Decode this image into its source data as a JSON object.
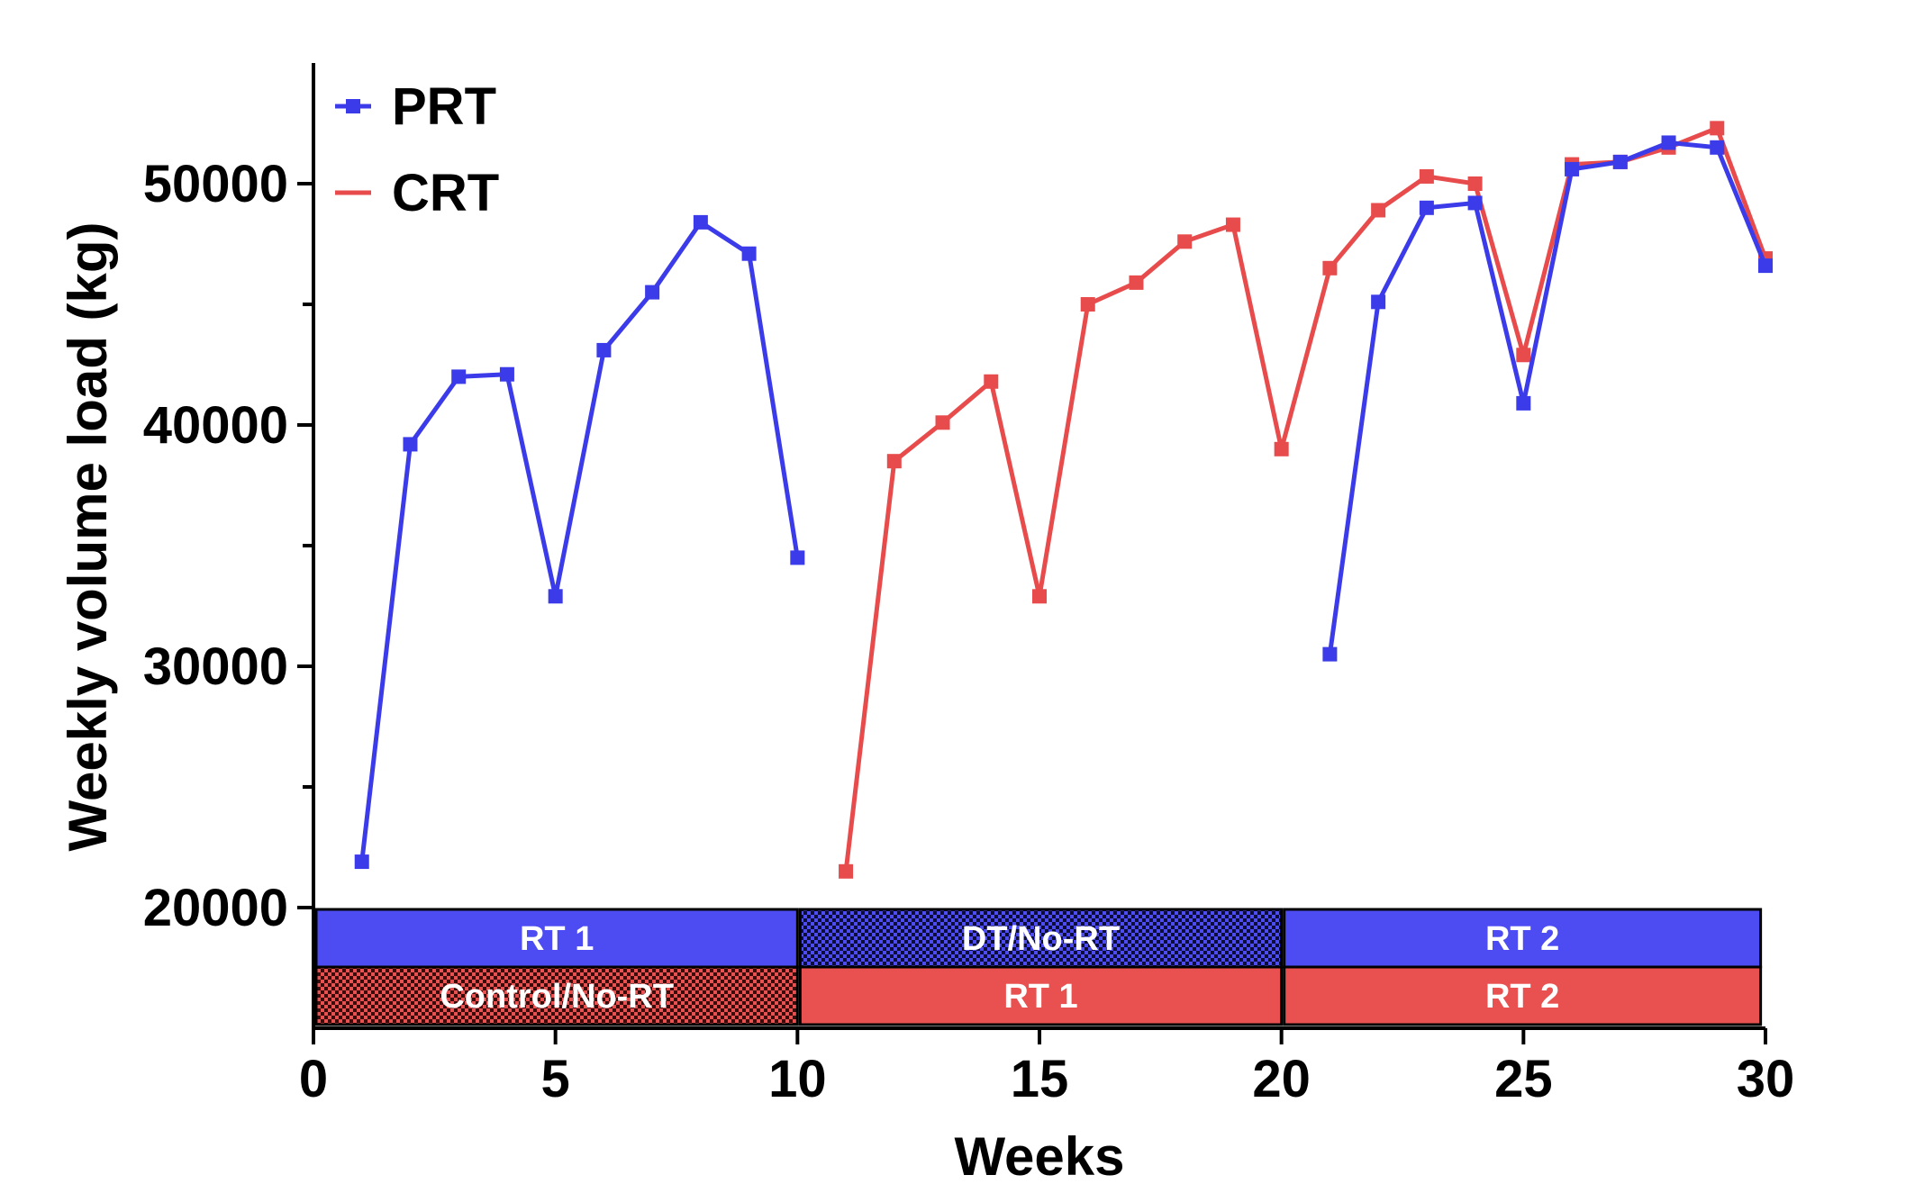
{
  "chart_data": {
    "type": "line",
    "title": "",
    "xlabel": "Weeks",
    "ylabel": "Weekly volume load (kg)",
    "xlim": [
      0,
      30
    ],
    "ylim": [
      15000,
      55000
    ],
    "x_ticks": [
      0,
      5,
      10,
      15,
      20,
      25,
      30
    ],
    "y_ticks": [
      20000,
      30000,
      40000,
      50000
    ],
    "y_minor_ticks": [
      25000,
      35000,
      45000
    ],
    "grid": false,
    "legend_position": "top-left",
    "series": [
      {
        "name": "PRT",
        "color": "#3b3bea",
        "marker": "square",
        "segments": [
          {
            "x": [
              1,
              2,
              3,
              4,
              5,
              6,
              7,
              8,
              9,
              10
            ],
            "y": [
              21900,
              39200,
              42000,
              42100,
              32900,
              43100,
              45500,
              48400,
              47100,
              34500
            ]
          },
          {
            "x": [
              21,
              22,
              23,
              24,
              25,
              26,
              27,
              28,
              29,
              30
            ],
            "y": [
              30500,
              45100,
              49000,
              49200,
              40900,
              50600,
              50900,
              51700,
              51500,
              46600
            ]
          }
        ]
      },
      {
        "name": "CRT",
        "color": "#e84b4b",
        "marker": "square",
        "segments": [
          {
            "x": [
              11,
              12,
              13,
              14,
              15,
              16,
              17,
              18,
              19,
              20,
              21,
              22,
              23,
              24,
              25,
              26,
              27,
              28,
              29,
              30
            ],
            "y": [
              21500,
              38500,
              40100,
              41800,
              32900,
              45000,
              45900,
              47600,
              48300,
              39000,
              46500,
              48900,
              50300,
              50000,
              42900,
              50800,
              50900,
              51500,
              52300,
              46900
            ]
          }
        ]
      }
    ],
    "phase_bars": [
      {
        "row": "PRT",
        "phases": [
          {
            "label": "RT 1",
            "start": 0,
            "end": 10,
            "fill": "solid",
            "color": "#4c4cf2"
          },
          {
            "label": "DT/No-RT",
            "start": 10,
            "end": 20,
            "fill": "checker",
            "color": "#4c4cf2"
          },
          {
            "label": "RT 2",
            "start": 20,
            "end": 30,
            "fill": "solid",
            "color": "#4c4cf2"
          }
        ]
      },
      {
        "row": "CRT",
        "phases": [
          {
            "label": "Control/No-RT",
            "start": 0,
            "end": 10,
            "fill": "checker",
            "color": "#e8514f"
          },
          {
            "label": "RT 1",
            "start": 10,
            "end": 20,
            "fill": "solid",
            "color": "#e8514f"
          },
          {
            "label": "RT 2",
            "start": 20,
            "end": 30,
            "fill": "solid",
            "color": "#e8514f"
          }
        ]
      }
    ]
  }
}
